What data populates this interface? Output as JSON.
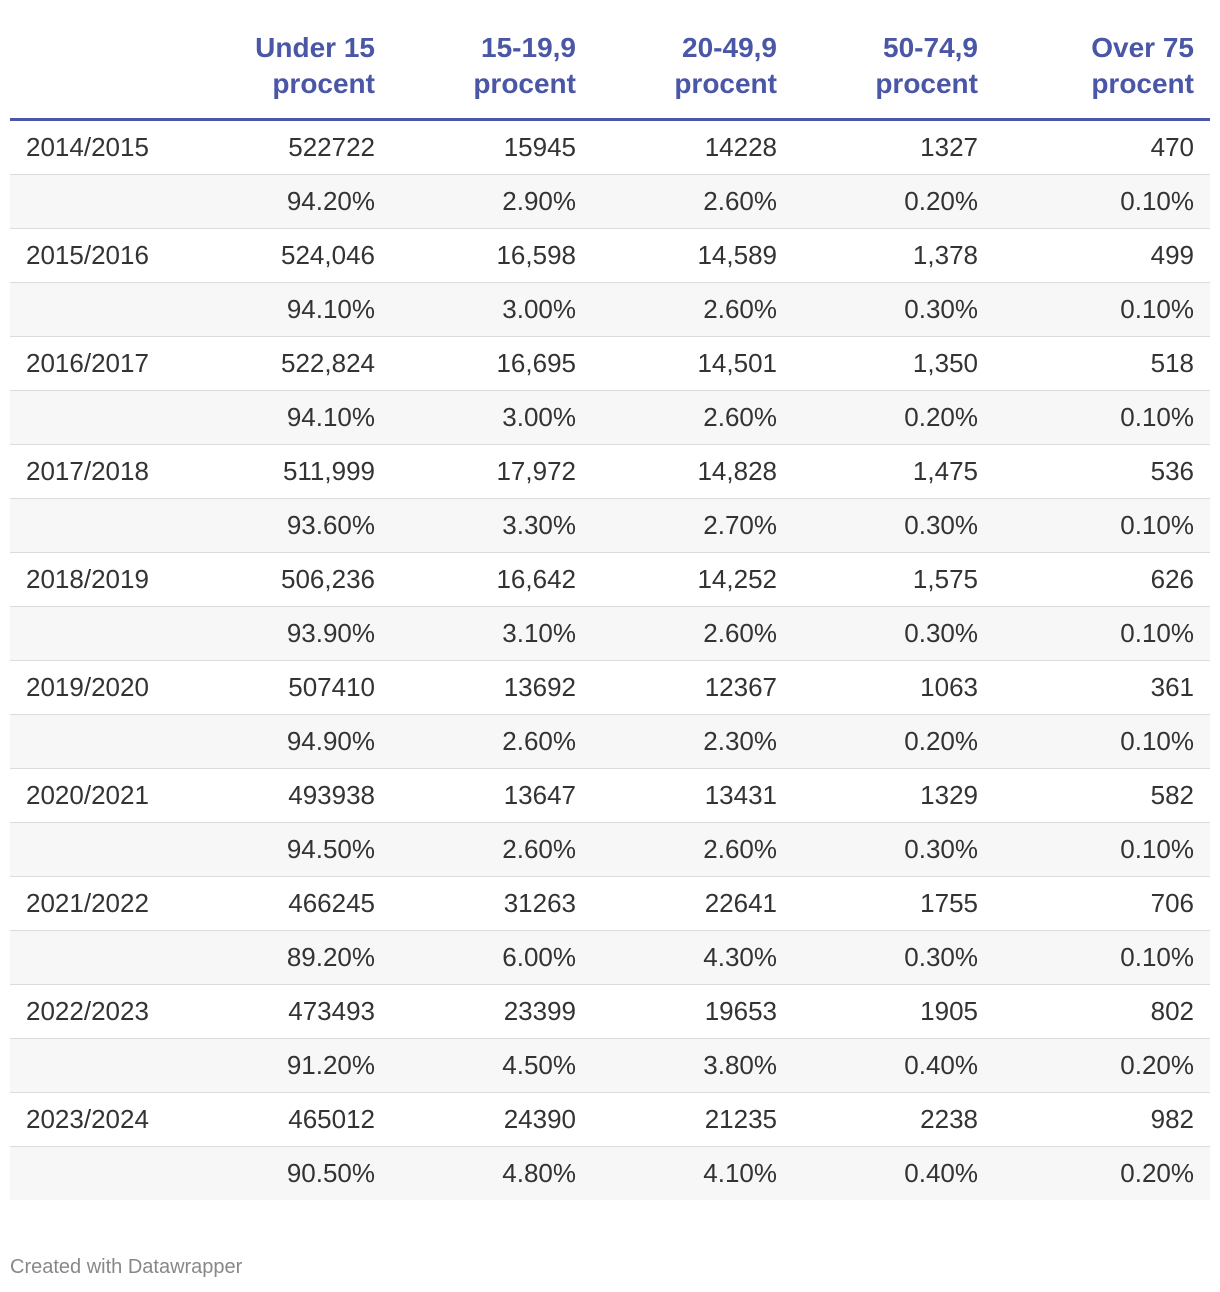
{
  "chart_data": {
    "type": "table",
    "columns": [
      "",
      "Under 15\nprocent",
      "15-19,9\nprocent",
      "20-49,9\nprocent",
      "50-74,9\nprocent",
      "Over 75\nprocent"
    ],
    "rows": [
      [
        "2014/2015",
        "522722",
        "15945",
        "14228",
        "1327",
        "470"
      ],
      [
        "",
        "94.20%",
        "2.90%",
        "2.60%",
        "0.20%",
        "0.10%"
      ],
      [
        "2015/2016",
        "524,046",
        "16,598",
        "14,589",
        "1,378",
        "499"
      ],
      [
        "",
        "94.10%",
        "3.00%",
        "2.60%",
        "0.30%",
        "0.10%"
      ],
      [
        "2016/2017",
        "522,824",
        "16,695",
        "14,501",
        "1,350",
        "518"
      ],
      [
        "",
        "94.10%",
        "3.00%",
        "2.60%",
        "0.20%",
        "0.10%"
      ],
      [
        "2017/2018",
        "511,999",
        "17,972",
        "14,828",
        "1,475",
        "536"
      ],
      [
        "",
        "93.60%",
        "3.30%",
        "2.70%",
        "0.30%",
        "0.10%"
      ],
      [
        "2018/2019",
        "506,236",
        "16,642",
        "14,252",
        "1,575",
        "626"
      ],
      [
        "",
        "93.90%",
        "3.10%",
        "2.60%",
        "0.30%",
        "0.10%"
      ],
      [
        "2019/2020",
        "507410",
        "13692",
        "12367",
        "1063",
        "361"
      ],
      [
        "",
        "94.90%",
        "2.60%",
        "2.30%",
        "0.20%",
        "0.10%"
      ],
      [
        "2020/2021",
        "493938",
        "13647",
        "13431",
        "1329",
        "582"
      ],
      [
        "",
        "94.50%",
        "2.60%",
        "2.60%",
        "0.30%",
        "0.10%"
      ],
      [
        "2021/2022",
        "466245",
        "31263",
        "22641",
        "1755",
        "706"
      ],
      [
        "",
        "89.20%",
        "6.00%",
        "4.30%",
        "0.30%",
        "0.10%"
      ],
      [
        "2022/2023",
        "473493",
        "23399",
        "19653",
        "1905",
        "802"
      ],
      [
        "",
        "91.20%",
        "4.50%",
        "3.80%",
        "0.40%",
        "0.20%"
      ],
      [
        "2023/2024",
        "465012",
        "24390",
        "21235",
        "2238",
        "982"
      ],
      [
        "",
        "90.50%",
        "4.80%",
        "4.10%",
        "0.40%",
        "0.20%"
      ]
    ],
    "colors": {
      "header_text": "#4a56a6",
      "header_rule": "#4a56a6",
      "stripe": "#f7f7f7",
      "row_rule": "#dcdcdc"
    }
  },
  "footer": {
    "credit": "Created with Datawrapper"
  }
}
